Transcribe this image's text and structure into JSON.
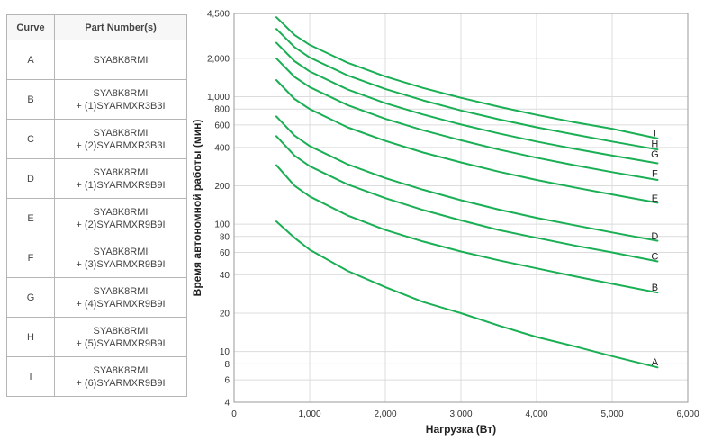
{
  "table": {
    "headers": {
      "curve": "Curve",
      "part": "Part Number(s)"
    },
    "rows": [
      {
        "curve": "A",
        "part_line1": "SYA8K8RMI",
        "part_line2": ""
      },
      {
        "curve": "B",
        "part_line1": "SYA8K8RMI",
        "part_line2": "+ (1)SYARMXR3B3I"
      },
      {
        "curve": "C",
        "part_line1": "SYA8K8RMI",
        "part_line2": "+ (2)SYARMXR3B3I"
      },
      {
        "curve": "D",
        "part_line1": "SYA8K8RMI",
        "part_line2": "+ (1)SYARMXR9B9I"
      },
      {
        "curve": "E",
        "part_line1": "SYA8K8RMI",
        "part_line2": "+ (2)SYARMXR9B9I"
      },
      {
        "curve": "F",
        "part_line1": "SYA8K8RMI",
        "part_line2": "+ (3)SYARMXR9B9I"
      },
      {
        "curve": "G",
        "part_line1": "SYA8K8RMI",
        "part_line2": "+ (4)SYARMXR9B9I"
      },
      {
        "curve": "H",
        "part_line1": "SYA8K8RMI",
        "part_line2": "+ (5)SYARMXR9B9I"
      },
      {
        "curve": "I",
        "part_line1": "SYA8K8RMI",
        "part_line2": "+ (6)SYARMXR9B9I"
      }
    ]
  },
  "chart_data": {
    "type": "line",
    "title": "",
    "xlabel": "Нагрузка (Вт)",
    "ylabel": "Время автономной работы (мин)",
    "xlim": [
      0,
      6000
    ],
    "ylim": [
      4,
      4500
    ],
    "y_scale": "log",
    "grid": true,
    "line_color": "#1aaf54",
    "x_ticks": [
      {
        "value": 0,
        "label": "0"
      },
      {
        "value": 1000,
        "label": "1,000"
      },
      {
        "value": 2000,
        "label": "2,000"
      },
      {
        "value": 3000,
        "label": "3,000"
      },
      {
        "value": 4000,
        "label": "4,000"
      },
      {
        "value": 5000,
        "label": "5,000"
      },
      {
        "value": 6000,
        "label": "6,000"
      }
    ],
    "y_ticks": [
      {
        "value": 4,
        "label": "4"
      },
      {
        "value": 6,
        "label": "6"
      },
      {
        "value": 8,
        "label": "8"
      },
      {
        "value": 10,
        "label": "10"
      },
      {
        "value": 20,
        "label": "20"
      },
      {
        "value": 40,
        "label": "40"
      },
      {
        "value": 60,
        "label": "60"
      },
      {
        "value": 80,
        "label": "80"
      },
      {
        "value": 100,
        "label": "100"
      },
      {
        "value": 200,
        "label": "200"
      },
      {
        "value": 400,
        "label": "400"
      },
      {
        "value": 600,
        "label": "600"
      },
      {
        "value": 800,
        "label": "800"
      },
      {
        "value": 1000,
        "label": "1,000"
      },
      {
        "value": 2000,
        "label": "2,000"
      },
      {
        "value": 4500,
        "label": "4,500"
      }
    ],
    "series": [
      {
        "name": "A",
        "x": [
          560,
          800,
          1000,
          1500,
          2000,
          2500,
          3000,
          3500,
          4000,
          4500,
          5000,
          5600
        ],
        "y": [
          105,
          78,
          63,
          43,
          32,
          24.5,
          20,
          16,
          13,
          11,
          9.2,
          7.5
        ]
      },
      {
        "name": "B",
        "x": [
          560,
          800,
          1000,
          1500,
          2000,
          2500,
          3000,
          3500,
          4000,
          4500,
          5000,
          5600
        ],
        "y": [
          290,
          200,
          165,
          117,
          90,
          73,
          61,
          52,
          45,
          39,
          34,
          29
        ]
      },
      {
        "name": "C",
        "x": [
          560,
          800,
          1000,
          1500,
          2000,
          2500,
          3000,
          3500,
          4000,
          4500,
          5000,
          5600
        ],
        "y": [
          490,
          345,
          285,
          205,
          160,
          129,
          107,
          90,
          78,
          68,
          60,
          51
        ]
      },
      {
        "name": "D",
        "x": [
          560,
          800,
          1000,
          1500,
          2000,
          2500,
          3000,
          3500,
          4000,
          4500,
          5000,
          5600
        ],
        "y": [
          700,
          495,
          410,
          295,
          230,
          186,
          154,
          130,
          112,
          98,
          86,
          74
        ]
      },
      {
        "name": "E",
        "x": [
          560,
          800,
          1000,
          1500,
          2000,
          2500,
          3000,
          3500,
          4000,
          4500,
          5000,
          5600
        ],
        "y": [
          1350,
          960,
          800,
          575,
          450,
          365,
          305,
          258,
          222,
          194,
          171,
          147
        ]
      },
      {
        "name": "F",
        "x": [
          560,
          800,
          1000,
          1500,
          2000,
          2500,
          3000,
          3500,
          4000,
          4500,
          5000,
          5600
        ],
        "y": [
          2000,
          1430,
          1190,
          860,
          670,
          545,
          455,
          385,
          332,
          290,
          256,
          222
        ]
      },
      {
        "name": "G",
        "x": [
          560,
          800,
          1000,
          1500,
          2000,
          2500,
          3000,
          3500,
          4000,
          4500,
          5000,
          5600
        ],
        "y": [
          2650,
          1900,
          1580,
          1140,
          890,
          725,
          605,
          515,
          445,
          390,
          345,
          300
        ]
      },
      {
        "name": "H",
        "x": [
          560,
          800,
          1000,
          1500,
          2000,
          2500,
          3000,
          3500,
          4000,
          4500,
          5000,
          5600
        ],
        "y": [
          3400,
          2450,
          2030,
          1470,
          1150,
          935,
          780,
          665,
          575,
          505,
          445,
          385
        ]
      },
      {
        "name": "I",
        "x": [
          560,
          800,
          1000,
          1500,
          2000,
          2500,
          3000,
          3500,
          4000,
          4500,
          5000,
          5600
        ],
        "y": [
          4200,
          3050,
          2550,
          1850,
          1440,
          1170,
          980,
          835,
          720,
          630,
          560,
          470
        ]
      }
    ],
    "curve_labels": [
      {
        "text": "I",
        "x": 5600,
        "y": 520
      },
      {
        "text": "H",
        "x": 5600,
        "y": 430
      },
      {
        "text": "G",
        "x": 5600,
        "y": 355
      },
      {
        "text": "F",
        "x": 5600,
        "y": 250
      },
      {
        "text": "E",
        "x": 5600,
        "y": 160
      },
      {
        "text": "D",
        "x": 5600,
        "y": 81
      },
      {
        "text": "C",
        "x": 5600,
        "y": 56
      },
      {
        "text": "B",
        "x": 5600,
        "y": 32
      },
      {
        "text": "A",
        "x": 5600,
        "y": 8.3
      }
    ]
  }
}
